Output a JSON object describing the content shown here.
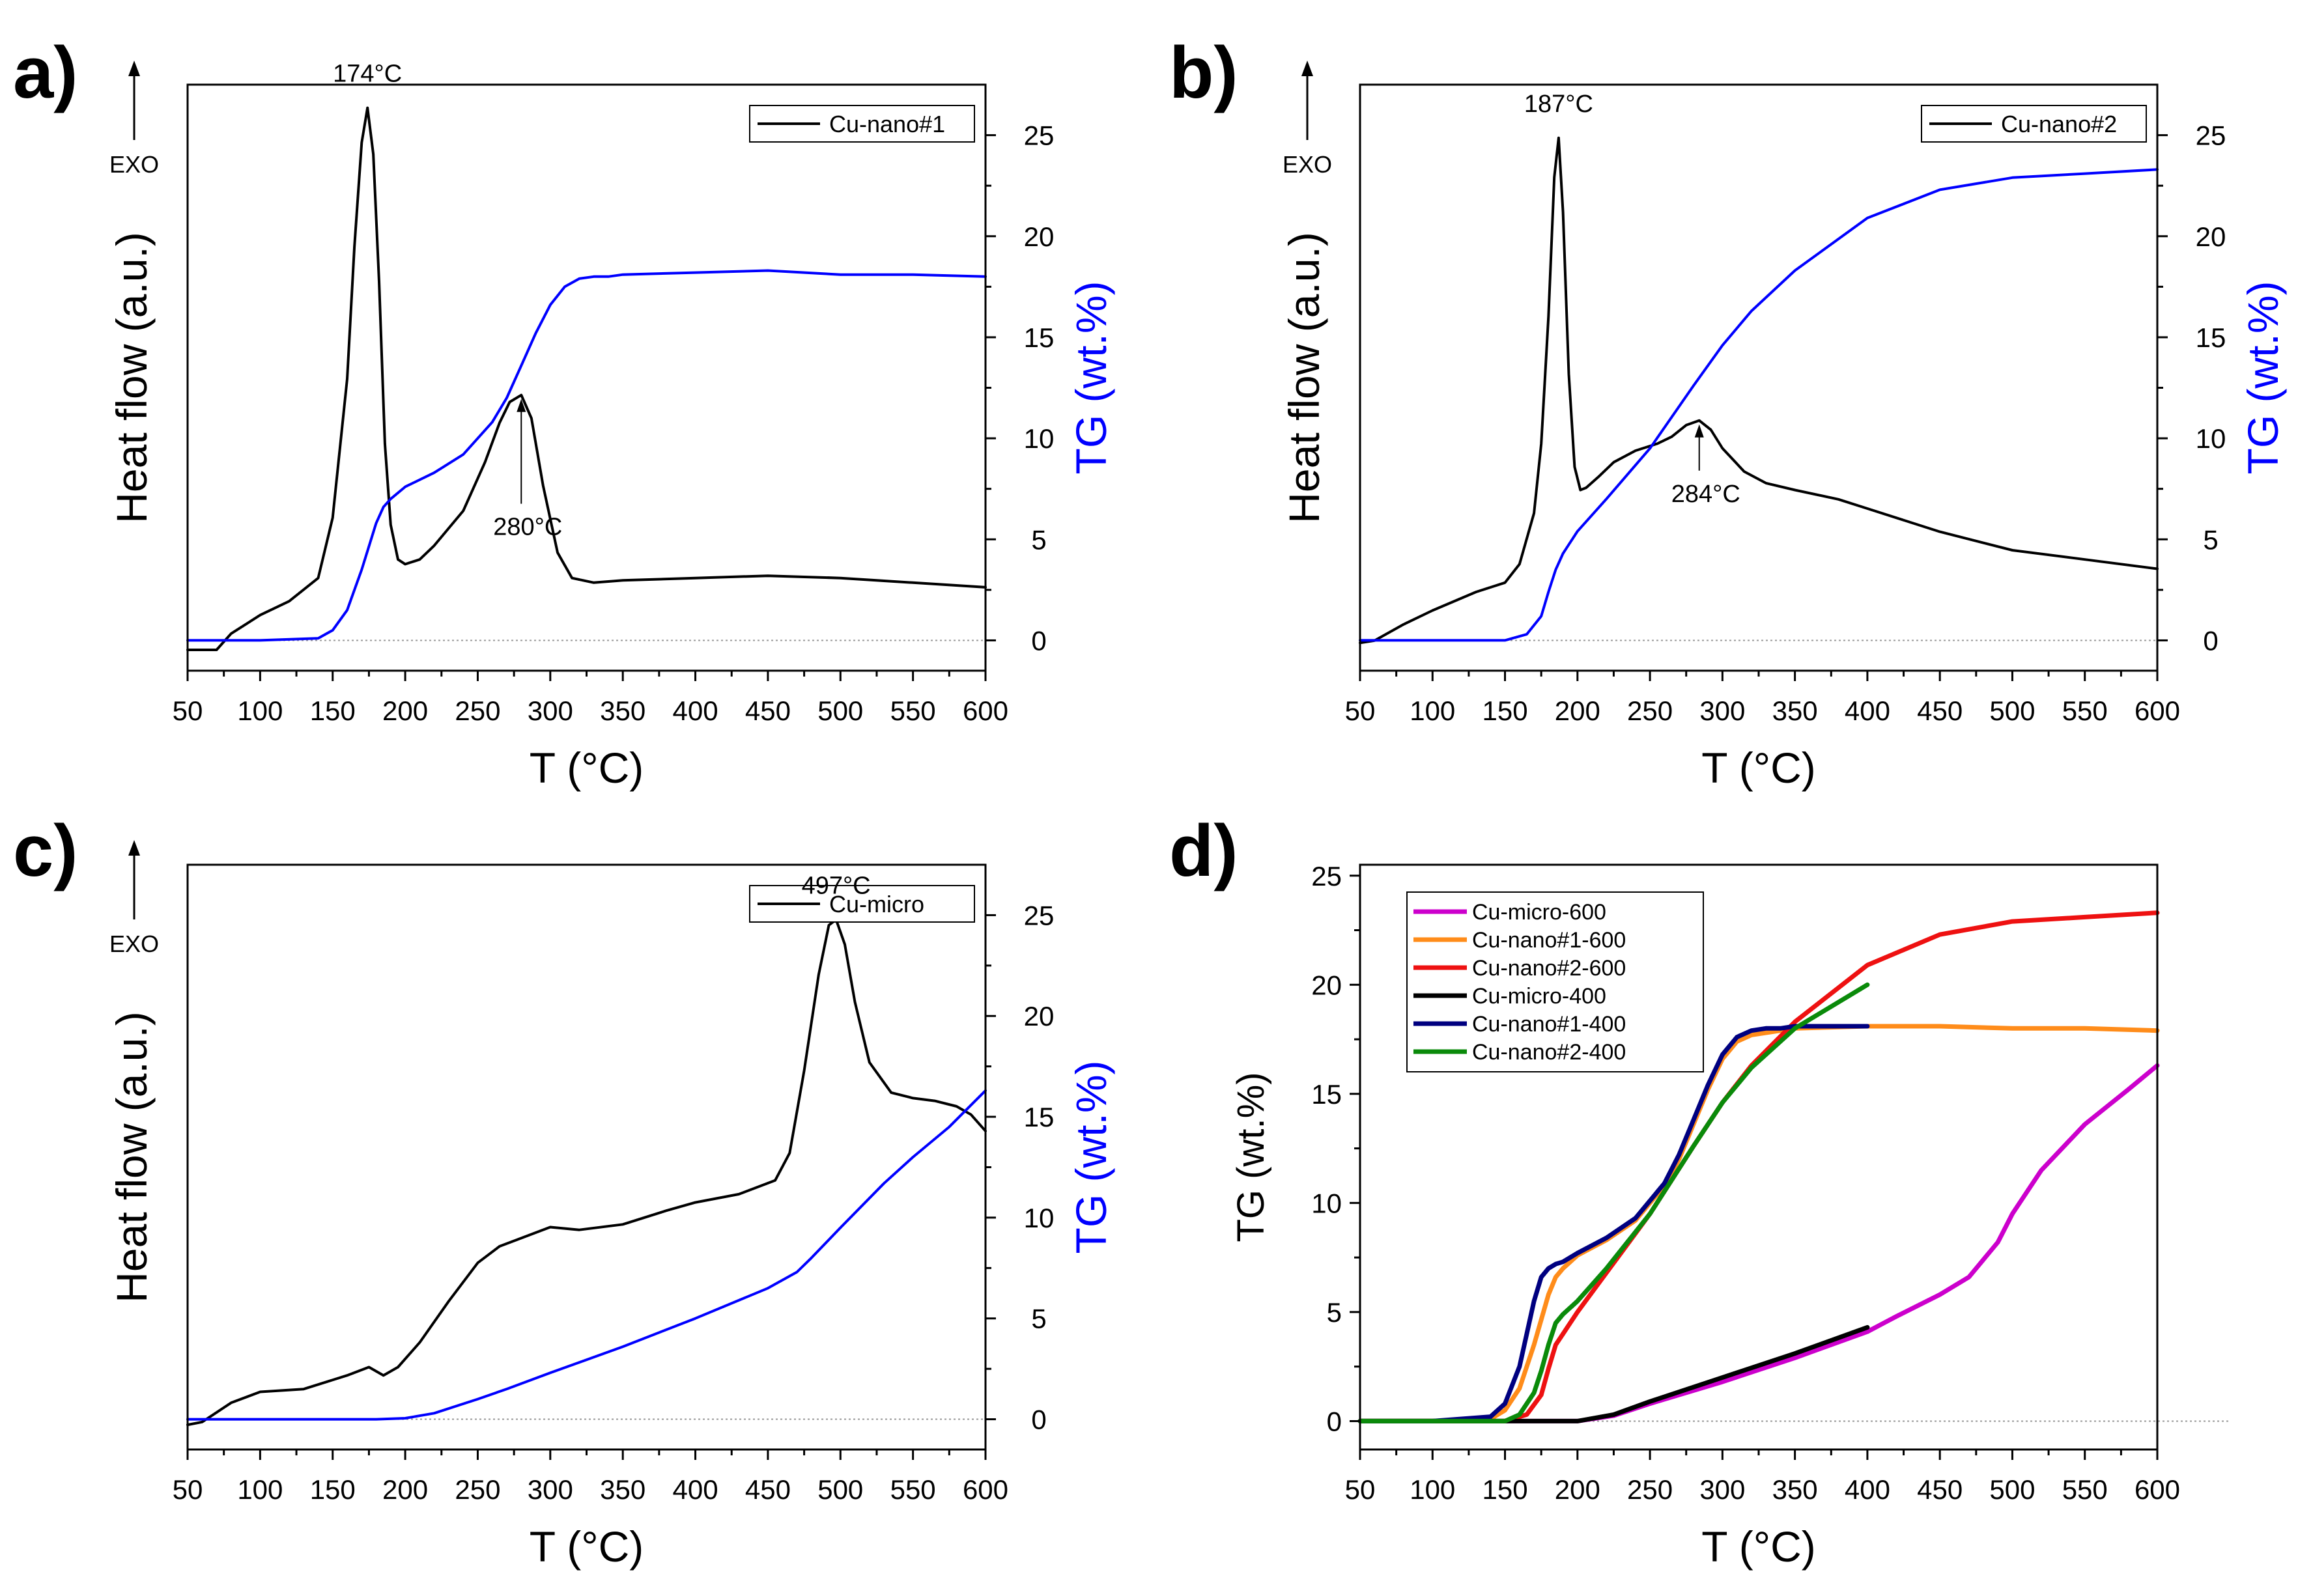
{
  "chart_data": [
    {
      "panel": "a)",
      "type": "line",
      "xlabel": "T (°C)",
      "ylabel_left": "Heat flow (a.u.)",
      "ylabel_right": "TG (wt.%)",
      "exo_label": "EXO",
      "xlim": [
        50,
        600
      ],
      "x_ticks": [
        50,
        100,
        150,
        200,
        250,
        300,
        350,
        400,
        450,
        500,
        550,
        600
      ],
      "y_right_lim": [
        -1.5,
        27.5
      ],
      "y_right_ticks": [
        0,
        5,
        10,
        15,
        20,
        25
      ],
      "legend": [
        "Cu-nano#1"
      ],
      "legend_position": "top-right",
      "annotations": [
        {
          "text": "174°C",
          "x": 174
        },
        {
          "text": "280°C",
          "x": 280
        }
      ],
      "series": [
        {
          "name": "Cu-nano#1",
          "axis": "heat_flow",
          "color": "#000000",
          "x": [
            50,
            70,
            80,
            100,
            120,
            140,
            150,
            160,
            165,
            170,
            174,
            178,
            182,
            186,
            190,
            195,
            200,
            210,
            220,
            240,
            255,
            265,
            272,
            280,
            287,
            295,
            305,
            315,
            330,
            350,
            400,
            450,
            500,
            550,
            600
          ],
          "y": [
            1.1,
            1.1,
            1.8,
            2.6,
            3.2,
            4.2,
            6.8,
            12.8,
            18.5,
            23.0,
            24.5,
            22.5,
            17.0,
            10.0,
            6.5,
            5.0,
            4.8,
            5.0,
            5.6,
            7.1,
            9.2,
            10.9,
            11.8,
            12.1,
            11.1,
            8.2,
            5.3,
            4.2,
            4.0,
            4.1,
            4.2,
            4.3,
            4.2,
            4.0,
            3.8
          ]
        },
        {
          "name": "TG Cu-nano#1",
          "axis": "TG",
          "color": "#0000ff",
          "x": [
            50,
            100,
            140,
            150,
            160,
            170,
            180,
            185,
            190,
            200,
            220,
            240,
            260,
            270,
            280,
            290,
            300,
            310,
            320,
            330,
            340,
            350,
            400,
            450,
            500,
            550,
            600
          ],
          "y": [
            0,
            0,
            0.1,
            0.5,
            1.5,
            3.5,
            5.8,
            6.6,
            7.0,
            7.6,
            8.3,
            9.2,
            10.8,
            12.0,
            13.6,
            15.2,
            16.6,
            17.5,
            17.9,
            18.0,
            18.0,
            18.1,
            18.2,
            18.3,
            18.1,
            18.1,
            18.0
          ]
        }
      ]
    },
    {
      "panel": "b)",
      "type": "line",
      "xlabel": "T (°C)",
      "ylabel_left": "Heat flow (a.u.)",
      "ylabel_right": "TG (wt.%)",
      "exo_label": "EXO",
      "xlim": [
        50,
        600
      ],
      "x_ticks": [
        50,
        100,
        150,
        200,
        250,
        300,
        350,
        400,
        450,
        500,
        550,
        600
      ],
      "y_right_lim": [
        -1.5,
        27.5
      ],
      "y_right_ticks": [
        0,
        5,
        10,
        15,
        20,
        25
      ],
      "legend": [
        "Cu-nano#2"
      ],
      "legend_position": "top-right",
      "annotations": [
        {
          "text": "187°C",
          "x": 187
        },
        {
          "text": "284°C",
          "x": 284
        }
      ],
      "series": [
        {
          "name": "Cu-nano#2",
          "axis": "heat_flow",
          "color": "#000000",
          "x": [
            50,
            60,
            80,
            100,
            130,
            150,
            160,
            170,
            175,
            180,
            184,
            187,
            190,
            194,
            198,
            202,
            206,
            215,
            225,
            240,
            255,
            265,
            275,
            284,
            292,
            300,
            315,
            330,
            350,
            380,
            400,
            450,
            500,
            550,
            600
          ],
          "y": [
            1.4,
            1.5,
            2.2,
            2.8,
            3.6,
            4.0,
            4.8,
            7.0,
            10.0,
            15.5,
            21.5,
            23.2,
            20.0,
            13.0,
            9.0,
            8.0,
            8.1,
            8.6,
            9.2,
            9.7,
            10.0,
            10.3,
            10.8,
            11.0,
            10.6,
            9.8,
            8.8,
            8.3,
            8.0,
            7.6,
            7.2,
            6.2,
            5.4,
            5.0,
            4.6
          ]
        },
        {
          "name": "TG Cu-nano#2",
          "axis": "TG",
          "color": "#0000ff",
          "x": [
            50,
            100,
            150,
            165,
            175,
            180,
            185,
            190,
            200,
            220,
            250,
            280,
            300,
            320,
            350,
            400,
            450,
            500,
            550,
            600
          ],
          "y": [
            0,
            0,
            0,
            0.3,
            1.2,
            2.4,
            3.5,
            4.3,
            5.4,
            7.0,
            9.5,
            12.6,
            14.6,
            16.3,
            18.3,
            20.9,
            22.3,
            22.9,
            23.1,
            23.3
          ]
        }
      ]
    },
    {
      "panel": "c)",
      "type": "line",
      "xlabel": "T (°C)",
      "ylabel_left": "Heat flow (a.u.)",
      "ylabel_right": "TG (wt.%)",
      "exo_label": "EXO",
      "xlim": [
        50,
        600
      ],
      "x_ticks": [
        50,
        100,
        150,
        200,
        250,
        300,
        350,
        400,
        450,
        500,
        550,
        600
      ],
      "y_right_lim": [
        -1.5,
        27.5
      ],
      "y_right_ticks": [
        0,
        5,
        10,
        15,
        20,
        25
      ],
      "legend": [
        "Cu-micro"
      ],
      "legend_position": "top-right",
      "annotations": [
        {
          "text": "497°C",
          "x": 497
        }
      ],
      "series": [
        {
          "name": "Cu-micro",
          "axis": "heat_flow",
          "color": "#000000",
          "x": [
            50,
            60,
            80,
            100,
            130,
            160,
            175,
            185,
            195,
            210,
            230,
            250,
            265,
            280,
            300,
            320,
            350,
            380,
            400,
            430,
            455,
            465,
            475,
            485,
            492,
            497,
            503,
            510,
            520,
            535,
            550,
            565,
            580,
            590,
            600
          ],
          "y": [
            1.1,
            1.2,
            1.9,
            2.3,
            2.4,
            2.9,
            3.2,
            2.9,
            3.2,
            4.1,
            5.6,
            7.0,
            7.6,
            7.9,
            8.3,
            8.2,
            8.4,
            8.9,
            9.2,
            9.5,
            10.0,
            11.0,
            14.0,
            17.5,
            19.3,
            19.5,
            18.6,
            16.5,
            14.3,
            13.2,
            13.0,
            12.9,
            12.7,
            12.4,
            11.8
          ]
        },
        {
          "name": "TG Cu-micro",
          "axis": "TG",
          "color": "#0000ff",
          "x": [
            50,
            100,
            150,
            180,
            200,
            220,
            250,
            270,
            300,
            350,
            400,
            450,
            470,
            480,
            500,
            530,
            550,
            575,
            600
          ],
          "y": [
            0,
            0,
            0,
            0,
            0.05,
            0.3,
            1.0,
            1.5,
            2.3,
            3.6,
            5.0,
            6.5,
            7.3,
            8.0,
            9.5,
            11.7,
            13.0,
            14.5,
            16.3
          ]
        }
      ]
    },
    {
      "panel": "d)",
      "type": "line",
      "xlabel": "T (°C)",
      "ylabel": "TG (wt.%)",
      "xlim": [
        50,
        600
      ],
      "x_ticks": [
        50,
        100,
        150,
        200,
        250,
        300,
        350,
        400,
        450,
        500,
        550,
        600
      ],
      "ylim": [
        -1.3,
        25.5
      ],
      "y_ticks": [
        0,
        5,
        10,
        15,
        20,
        25
      ],
      "legend_position": "top-left",
      "series": [
        {
          "name": "Cu-micro-600",
          "color": "#cc00cc",
          "x": [
            50,
            150,
            200,
            225,
            250,
            300,
            350,
            400,
            420,
            450,
            470,
            490,
            500,
            520,
            550,
            580,
            600
          ],
          "y": [
            0,
            0,
            0,
            0.25,
            0.8,
            1.8,
            2.9,
            4.1,
            4.8,
            5.8,
            6.6,
            8.2,
            9.5,
            11.5,
            13.6,
            15.2,
            16.3
          ]
        },
        {
          "name": "Cu-nano#1-600",
          "color": "#ff8c1a",
          "x": [
            50,
            100,
            140,
            150,
            160,
            170,
            180,
            185,
            190,
            200,
            220,
            240,
            260,
            270,
            280,
            290,
            300,
            310,
            320,
            330,
            340,
            350,
            400,
            450,
            500,
            550,
            600
          ],
          "y": [
            0,
            0,
            0.1,
            0.5,
            1.5,
            3.5,
            5.8,
            6.6,
            7.0,
            7.6,
            8.3,
            9.2,
            10.8,
            12.0,
            13.6,
            15.2,
            16.6,
            17.4,
            17.7,
            17.8,
            17.9,
            18.0,
            18.1,
            18.1,
            18.0,
            18.0,
            17.9
          ]
        },
        {
          "name": "Cu-nano#2-600",
          "color": "#ee1111",
          "x": [
            50,
            100,
            150,
            165,
            175,
            180,
            185,
            190,
            200,
            220,
            250,
            280,
            300,
            320,
            350,
            400,
            450,
            500,
            550,
            600
          ],
          "y": [
            0,
            0,
            0,
            0.3,
            1.2,
            2.4,
            3.5,
            4.0,
            5.0,
            6.8,
            9.5,
            12.6,
            14.6,
            16.3,
            18.3,
            20.9,
            22.3,
            22.9,
            23.1,
            23.3
          ]
        },
        {
          "name": "Cu-micro-400",
          "color": "#000000",
          "x": [
            50,
            150,
            200,
            225,
            250,
            300,
            350,
            400
          ],
          "y": [
            0,
            0,
            0,
            0.3,
            0.9,
            2.0,
            3.1,
            4.3
          ]
        },
        {
          "name": "Cu-nano#1-400",
          "color": "#000080",
          "x": [
            50,
            100,
            140,
            150,
            160,
            170,
            175,
            180,
            185,
            190,
            200,
            220,
            240,
            260,
            270,
            280,
            290,
            300,
            310,
            320,
            330,
            340,
            350,
            400
          ],
          "y": [
            0,
            0,
            0.2,
            0.8,
            2.5,
            5.5,
            6.6,
            7.0,
            7.2,
            7.3,
            7.7,
            8.4,
            9.3,
            10.9,
            12.2,
            13.8,
            15.4,
            16.8,
            17.6,
            17.9,
            18.0,
            18.0,
            18.1,
            18.1
          ]
        },
        {
          "name": "Cu-nano#2-400",
          "color": "#0a8a0a",
          "x": [
            50,
            100,
            150,
            160,
            170,
            175,
            180,
            185,
            190,
            200,
            220,
            250,
            280,
            300,
            320,
            350,
            400
          ],
          "y": [
            0,
            0,
            0,
            0.3,
            1.3,
            2.3,
            3.5,
            4.5,
            4.9,
            5.5,
            7.0,
            9.5,
            12.6,
            14.6,
            16.2,
            18.0,
            20.0
          ]
        }
      ]
    }
  ]
}
